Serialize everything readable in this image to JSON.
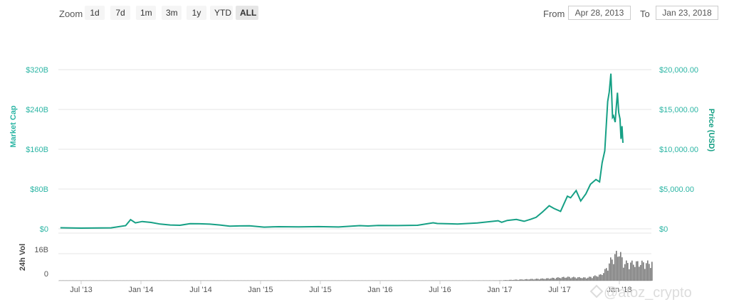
{
  "toolbar": {
    "zoom_label": "Zoom",
    "zoom_buttons": [
      "1d",
      "7d",
      "1m",
      "3m",
      "1y",
      "YTD",
      "ALL"
    ],
    "active_zoom": "ALL",
    "from_label": "From",
    "from_value": "Apr 28, 2013",
    "to_label": "To",
    "to_value": "Jan 23, 2018"
  },
  "watermark": "@atoz_crypto",
  "colors": {
    "price_line": "#16a085",
    "axis_text": "#2bb5a4",
    "price_axis_title": "#16a085",
    "volume": "#777777",
    "grid": "#e6e6e6"
  },
  "chart_data": {
    "type": "line",
    "x_ticks": [
      "Jul '13",
      "Jan '14",
      "Jul '14",
      "Jan '15",
      "Jul '15",
      "Jan '16",
      "Jul '16",
      "Jan '17",
      "Jul '17",
      "Jan '18"
    ],
    "market_cap_axis": {
      "title": "Market Cap",
      "ticks": [
        "$0",
        "$80B",
        "$160B",
        "$240B",
        "$320B"
      ],
      "range": [
        0,
        320
      ]
    },
    "price_axis": {
      "title": "Price (USD)",
      "ticks": [
        "$0",
        "$5,000.00",
        "$10,000.00",
        "$15,000.00",
        "$20,000.00"
      ],
      "range": [
        0,
        20000
      ]
    },
    "volume_axis": {
      "title": "24h Vol",
      "ticks": [
        "0",
        "16B"
      ]
    },
    "series": [
      {
        "name": "Price (USD)",
        "x": [
          "2013-04-28",
          "2013-07-01",
          "2013-10-01",
          "2013-11-15",
          "2013-11-30",
          "2013-12-15",
          "2014-01-05",
          "2014-02-01",
          "2014-03-01",
          "2014-04-01",
          "2014-05-01",
          "2014-06-01",
          "2014-07-01",
          "2014-08-01",
          "2014-09-01",
          "2014-10-01",
          "2014-11-01",
          "2014-12-01",
          "2015-01-15",
          "2015-03-01",
          "2015-05-01",
          "2015-07-01",
          "2015-09-01",
          "2015-11-05",
          "2015-12-01",
          "2016-01-01",
          "2016-03-01",
          "2016-05-01",
          "2016-06-18",
          "2016-07-01",
          "2016-09-01",
          "2016-11-01",
          "2017-01-04",
          "2017-01-15",
          "2017-02-01",
          "2017-03-01",
          "2017-03-25",
          "2017-04-15",
          "2017-05-01",
          "2017-05-20",
          "2017-06-10",
          "2017-06-25",
          "2017-07-15",
          "2017-08-05",
          "2017-08-15",
          "2017-09-01",
          "2017-09-15",
          "2017-10-01",
          "2017-10-15",
          "2017-11-01",
          "2017-11-12",
          "2017-11-20",
          "2017-11-28",
          "2017-12-07",
          "2017-12-12",
          "2017-12-17",
          "2017-12-22",
          "2017-12-25",
          "2017-12-30",
          "2018-01-02",
          "2018-01-06",
          "2018-01-10",
          "2018-01-14",
          "2018-01-17",
          "2018-01-20",
          "2018-01-23"
        ],
        "values": [
          135,
          90,
          125,
          400,
          1150,
          750,
          920,
          800,
          600,
          480,
          450,
          640,
          630,
          590,
          480,
          340,
          370,
          380,
          210,
          270,
          240,
          280,
          235,
          400,
          360,
          430,
          415,
          450,
          760,
          670,
          610,
          730,
          1020,
          820,
          1050,
          1180,
          950,
          1210,
          1450,
          2100,
          2900,
          2550,
          2200,
          4100,
          3900,
          4800,
          3500,
          4400,
          5600,
          6200,
          5900,
          8300,
          9800,
          16000,
          17200,
          19500,
          14000,
          14200,
          13400,
          15000,
          17100,
          14600,
          13800,
          11300,
          12900,
          10800
        ]
      },
      {
        "name": "24h Vol",
        "x": [
          "2013-04-28",
          "2015-01-01",
          "2017-01-01",
          "2017-06-01",
          "2017-08-01",
          "2017-10-01",
          "2017-11-15",
          "2017-12-01",
          "2017-12-15",
          "2018-01-01",
          "2018-01-10",
          "2018-01-23"
        ],
        "values": [
          0.1,
          0.05,
          0.2,
          1.5,
          2.5,
          2,
          4,
          8,
          14,
          18,
          20,
          12
        ]
      }
    ],
    "grid": true,
    "legend": "none"
  }
}
